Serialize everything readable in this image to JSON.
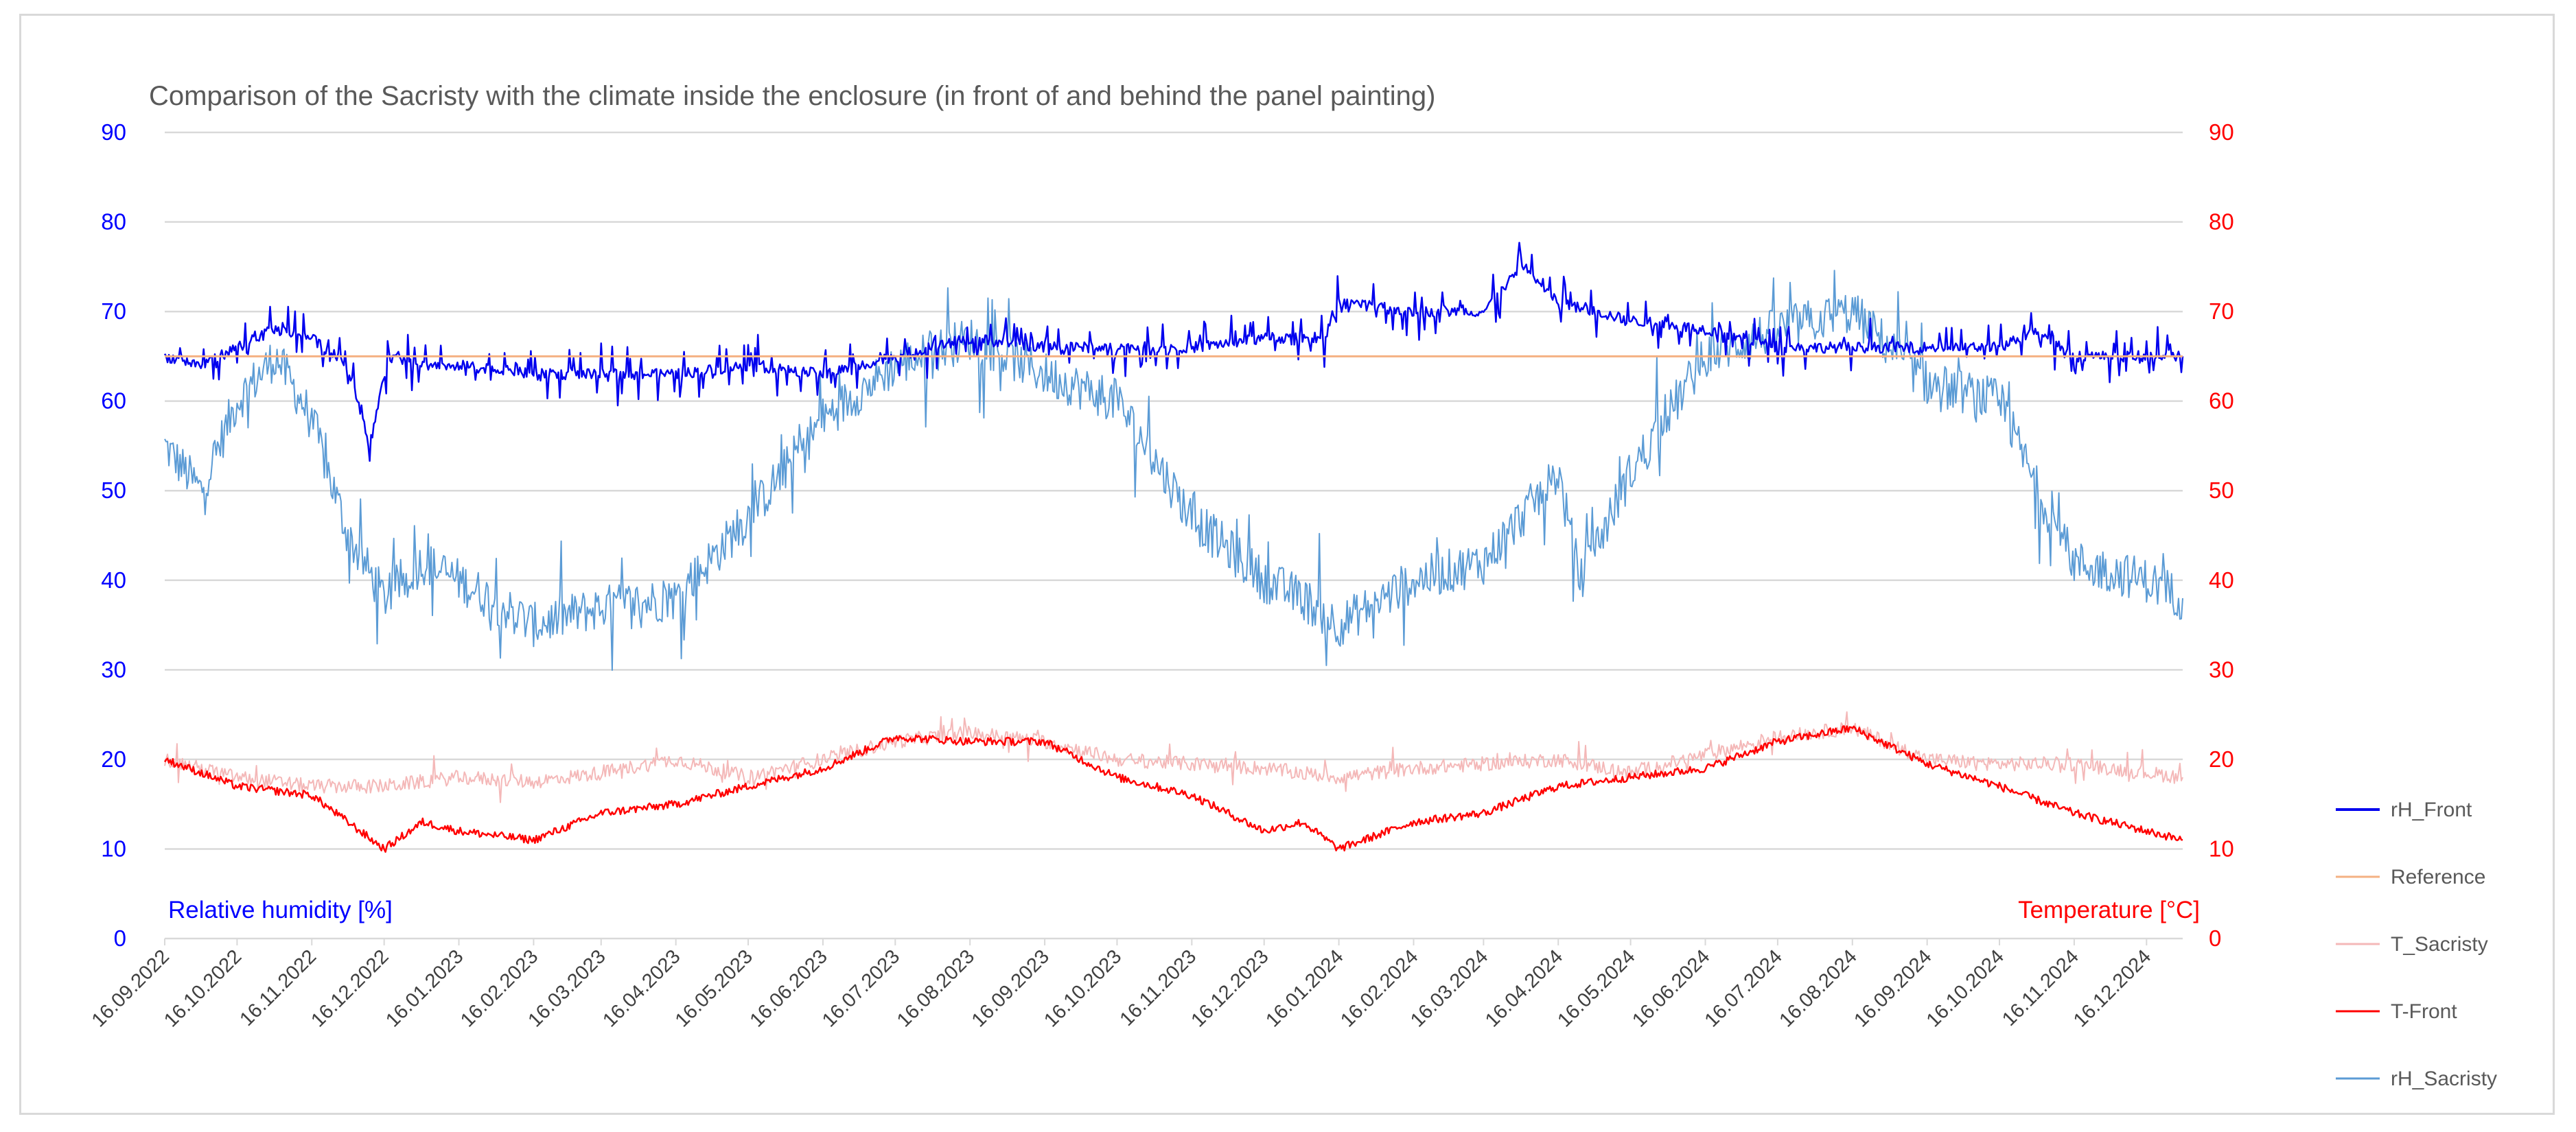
{
  "chart_data": {
    "type": "line",
    "title": "Comparison of the Sacristy with the climate inside the enclosure (in front of and behind the panel painting)",
    "ylabel_left": "Relative humidity [%]",
    "ylabel_right": "Temperature [°C]",
    "ylim_left": [
      0,
      90
    ],
    "ylim_right": [
      0,
      90
    ],
    "yticks_left": [
      "0",
      "10",
      "20",
      "30",
      "40",
      "50",
      "60",
      "70",
      "80",
      "90"
    ],
    "yticks_right": [
      "0",
      "10",
      "20",
      "30",
      "40",
      "50",
      "60",
      "70",
      "80",
      "90"
    ],
    "grid": true,
    "legend_position": "right",
    "x_start": "16.09.2022",
    "x_end": "31.12.2024",
    "x_tick_labels": [
      "16.09.2022",
      "16.10.2022",
      "16.11.2022",
      "16.12.2022",
      "16.01.2023",
      "16.02.2023",
      "16.03.2023",
      "16.04.2023",
      "16.05.2023",
      "16.06.2023",
      "16.07.2023",
      "16.08.2023",
      "16.09.2023",
      "16.10.2023",
      "16.11.2023",
      "16.12.2023",
      "16.01.2024",
      "16.02.2024",
      "16.03.2024",
      "16.04.2024",
      "16.05.2024",
      "16.06.2024",
      "16.07.2024",
      "16.08.2024",
      "16.09.2024",
      "16.10.2024",
      "16.11.2024",
      "16.12.2024"
    ],
    "series": [
      {
        "name": "rH_Front",
        "color": "#0000ee",
        "axis": "left",
        "x": [
          "16.09.2022",
          "01.10.2022",
          "16.10.2022",
          "01.11.2022",
          "16.11.2022",
          "01.12.2022",
          "10.12.2022",
          "18.12.2022",
          "01.01.2023",
          "16.01.2023",
          "16.02.2023",
          "16.03.2023",
          "16.04.2023",
          "16.05.2023",
          "16.06.2023",
          "16.07.2023",
          "16.08.2023",
          "16.09.2023",
          "16.10.2023",
          "16.11.2023",
          "16.12.2023",
          "10.01.2024",
          "16.01.2024",
          "16.02.2024",
          "16.03.2024",
          "01.04.2024",
          "16.04.2024",
          "16.05.2024",
          "16.06.2024",
          "16.07.2024",
          "16.08.2024",
          "16.09.2024",
          "16.10.2024",
          "01.11.2024",
          "16.11.2024",
          "16.12.2024",
          "31.12.2024"
        ],
        "values": [
          65,
          64,
          66,
          68,
          67,
          64,
          55,
          65,
          64,
          64,
          63,
          63,
          63,
          64,
          63,
          65,
          67,
          66,
          66,
          66,
          67,
          67,
          71,
          70,
          70,
          75,
          71,
          69,
          68,
          66,
          66,
          66,
          66,
          68,
          65,
          65,
          65
        ]
      },
      {
        "name": "Reference",
        "color": "#f4b183",
        "axis": "left",
        "x": [
          "16.09.2022",
          "31.12.2024"
        ],
        "values": [
          65,
          65
        ]
      },
      {
        "name": "T_Sacristy",
        "color": "#f4b8b8",
        "axis": "right",
        "x": [
          "16.09.2022",
          "16.10.2022",
          "16.11.2022",
          "16.12.2022",
          "16.01.2023",
          "16.02.2023",
          "16.03.2023",
          "16.04.2023",
          "16.05.2023",
          "16.06.2023",
          "16.07.2023",
          "16.08.2023",
          "16.09.2023",
          "16.10.2023",
          "16.11.2023",
          "16.12.2023",
          "16.01.2024",
          "16.02.2024",
          "16.03.2024",
          "16.04.2024",
          "16.05.2024",
          "16.06.2024",
          "16.07.2024",
          "16.08.2024",
          "16.09.2024",
          "16.10.2024",
          "16.11.2024",
          "16.12.2024",
          "31.12.2024"
        ],
        "values": [
          20,
          18,
          17,
          17,
          18,
          17.5,
          18.5,
          20,
          18,
          20,
          22,
          23,
          22,
          20,
          19.5,
          19,
          18,
          19,
          19.5,
          20,
          18.5,
          20.5,
          22.5,
          23.5,
          20,
          19.5,
          19.5,
          18.5,
          18
        ]
      },
      {
        "name": "T-Front",
        "color": "#ff0000",
        "axis": "right",
        "x": [
          "16.09.2022",
          "16.10.2022",
          "16.11.2022",
          "16.12.2022",
          "01.01.2023",
          "16.01.2023",
          "16.02.2023",
          "16.03.2023",
          "16.04.2023",
          "16.05.2023",
          "16.06.2023",
          "16.07.2023",
          "16.08.2023",
          "16.09.2023",
          "16.10.2023",
          "16.11.2023",
          "16.12.2023",
          "01.01.2024",
          "16.01.2024",
          "16.02.2024",
          "16.03.2024",
          "16.04.2024",
          "16.05.2024",
          "16.06.2024",
          "16.07.2024",
          "16.08.2024",
          "16.09.2024",
          "16.10.2024",
          "16.11.2024",
          "16.12.2024",
          "31.12.2024"
        ],
        "values": [
          20,
          17,
          16,
          10,
          13,
          12,
          11,
          14,
          15,
          17,
          19,
          22.5,
          22,
          22,
          18,
          16,
          12,
          13,
          10,
          13,
          14,
          17,
          18,
          19,
          22,
          23.5,
          19.5,
          17,
          14,
          12,
          11
        ]
      },
      {
        "name": "rH_Sacristy",
        "color": "#5b9bd5",
        "axis": "left",
        "x": [
          "16.09.2022",
          "01.10.2022",
          "16.10.2022",
          "01.11.2022",
          "16.11.2022",
          "01.12.2022",
          "16.12.2022",
          "01.01.2023",
          "16.01.2023",
          "16.02.2023",
          "16.03.2023",
          "16.04.2023",
          "16.05.2023",
          "16.06.2023",
          "16.07.2023",
          "16.08.2023",
          "16.09.2023",
          "16.10.2023",
          "16.11.2023",
          "16.12.2023",
          "01.01.2024",
          "16.01.2024",
          "16.02.2024",
          "16.03.2024",
          "16.04.2024",
          "25.04.2024",
          "16.05.2024",
          "16.06.2024",
          "16.07.2024",
          "16.08.2024",
          "16.09.2024",
          "16.10.2024",
          "01.11.2024",
          "16.11.2024",
          "16.12.2024",
          "31.12.2024"
        ],
        "values": [
          55,
          50,
          60,
          65,
          58,
          45,
          38,
          42,
          40,
          35,
          37,
          38,
          47,
          58,
          64,
          67,
          63,
          60,
          47,
          40,
          38,
          35,
          40,
          42,
          52,
          40,
          52,
          65,
          68,
          70,
          62,
          60,
          50,
          42,
          40,
          38
        ]
      }
    ]
  }
}
